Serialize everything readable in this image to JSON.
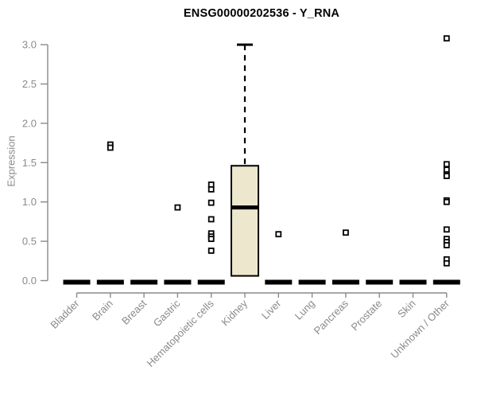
{
  "chart_data": {
    "type": "boxplot",
    "title": "ENSG00000202536 - Y_RNA",
    "ylabel": "Expression",
    "xlabel": "",
    "ylim": [
      0,
      3.1
    ],
    "yticks": [
      0.0,
      0.5,
      1.0,
      1.5,
      2.0,
      2.5,
      3.0
    ],
    "grid": false,
    "legend": "none",
    "categories": [
      "Bladder",
      "Brain",
      "Breast",
      "Gastric",
      "Hematopoietic cells",
      "Kidney",
      "Liver",
      "Lung",
      "Pancreas",
      "Prostate",
      "Skin",
      "Unknown / Other"
    ],
    "boxes": [
      {
        "category": "Bladder",
        "q1": 0,
        "median": 0,
        "q3": 0,
        "whisker_low": 0,
        "whisker_high": 0,
        "outliers": []
      },
      {
        "category": "Brain",
        "q1": 0,
        "median": 0,
        "q3": 0,
        "whisker_low": 0,
        "whisker_high": 0,
        "outliers": [
          1.73,
          1.69
        ]
      },
      {
        "category": "Breast",
        "q1": 0,
        "median": 0,
        "q3": 0,
        "whisker_low": 0,
        "whisker_high": 0,
        "outliers": []
      },
      {
        "category": "Gastric",
        "q1": 0,
        "median": 0,
        "q3": 0,
        "whisker_low": 0,
        "whisker_high": 0,
        "outliers": [
          0.93
        ]
      },
      {
        "category": "Hematopoietic cells",
        "q1": 0,
        "median": 0,
        "q3": 0,
        "whisker_low": 0,
        "whisker_high": 0,
        "outliers": [
          1.22,
          1.16,
          0.99,
          0.78,
          0.6,
          0.56,
          0.53,
          0.38
        ]
      },
      {
        "category": "Kidney",
        "q1": 0.06,
        "median": 0.93,
        "q3": 1.46,
        "whisker_low": 0.06,
        "whisker_high": 3.0,
        "outliers": []
      },
      {
        "category": "Liver",
        "q1": 0,
        "median": 0,
        "q3": 0,
        "whisker_low": 0,
        "whisker_high": 0,
        "outliers": [
          0.59
        ]
      },
      {
        "category": "Lung",
        "q1": 0,
        "median": 0,
        "q3": 0,
        "whisker_low": 0,
        "whisker_high": 0,
        "outliers": []
      },
      {
        "category": "Pancreas",
        "q1": 0,
        "median": 0,
        "q3": 0,
        "whisker_low": 0,
        "whisker_high": 0,
        "outliers": [
          0.61
        ]
      },
      {
        "category": "Prostate",
        "q1": 0,
        "median": 0,
        "q3": 0,
        "whisker_low": 0,
        "whisker_high": 0,
        "outliers": []
      },
      {
        "category": "Skin",
        "q1": 0,
        "median": 0,
        "q3": 0,
        "whisker_low": 0,
        "whisker_high": 0,
        "outliers": []
      },
      {
        "category": "Unknown / Other",
        "q1": 0,
        "median": 0,
        "q3": 0,
        "whisker_low": 0,
        "whisker_high": 0,
        "outliers": [
          3.08,
          1.48,
          1.41,
          1.35,
          1.33,
          1.02,
          1.0,
          0.65,
          0.53,
          0.49,
          0.45,
          0.27,
          0.22
        ]
      }
    ],
    "colors": {
      "background": "#ffffff",
      "box_fill": "#EDE8CD",
      "box_border": "#000000",
      "median": "#000000",
      "whisker": "#000000",
      "outlier_stroke": "#000000",
      "outlier_fill": "#ffffff",
      "axis": "#8a8a8a",
      "tick_text": "#8a8a8a",
      "title_text": "#000000"
    }
  }
}
